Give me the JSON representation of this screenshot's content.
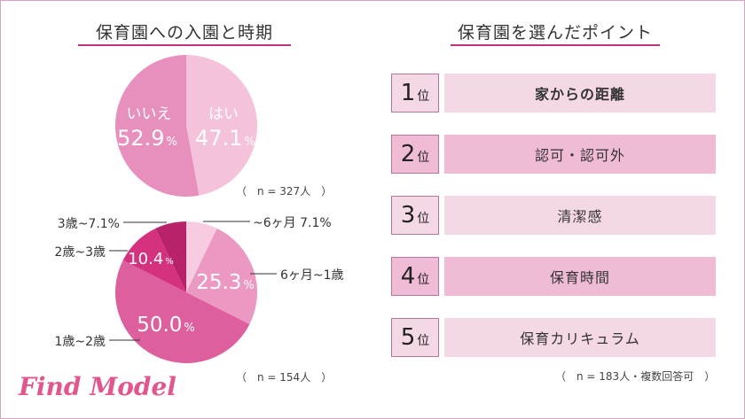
{
  "left_title": "保育園への入園と時期",
  "right_title": "保育園を選んだポイント",
  "pie1_note": "（　n = 327人　）",
  "pie2_note": "（　n = 154人　）",
  "ranking_note": "（　n = 183人・複数回答可　）",
  "pie2_callouts": {
    "a": "~6ヶ月 7.1%",
    "b": "6ヶ月~1歳",
    "c": "1歳~2歳",
    "d": "2歳~3歳",
    "e": "3歳~7.1%"
  },
  "ranking": [
    {
      "rank": "1",
      "suffix": "位",
      "label": "家からの距離"
    },
    {
      "rank": "2",
      "suffix": "位",
      "label": "認可・認可外"
    },
    {
      "rank": "3",
      "suffix": "位",
      "label": "清潔感"
    },
    {
      "rank": "4",
      "suffix": "位",
      "label": "保育時間"
    },
    {
      "rank": "5",
      "suffix": "位",
      "label": "保育カリキュラム"
    }
  ],
  "logo": "Find Model",
  "colors": {
    "border": "#d7a3c2",
    "title_underline": "#c2347f",
    "row_light": "#f5d8e6",
    "row_dark": "#f0bcd5",
    "pie1_yes": "#f4c2da",
    "pie1_no": "#e78fbd",
    "pie2_s1": "#f7cce0",
    "pie2_s2": "#eb99c2",
    "pie2_s3": "#dd5f9e",
    "pie2_s4": "#d4327f",
    "pie2_s5": "#b8226a",
    "logo": "#e2568e"
  },
  "chart_data": [
    {
      "type": "pie",
      "slices": [
        {
          "label": "はい",
          "value": 47.1,
          "value_label": "47.1"
        },
        {
          "label": "いいえ",
          "value": 52.9,
          "value_label": "52.9"
        }
      ],
      "unit": "%"
    },
    {
      "type": "pie",
      "slices": [
        {
          "label": "",
          "value": 7.1,
          "value_label": ""
        },
        {
          "label": "",
          "value": 25.3,
          "value_label": "25.3"
        },
        {
          "label": "",
          "value": 50.0,
          "value_label": "50.0"
        },
        {
          "label": "",
          "value": 10.4,
          "value_label": "10.4"
        },
        {
          "label": "",
          "value": 7.1,
          "value_label": ""
        }
      ],
      "unit": "%"
    }
  ]
}
